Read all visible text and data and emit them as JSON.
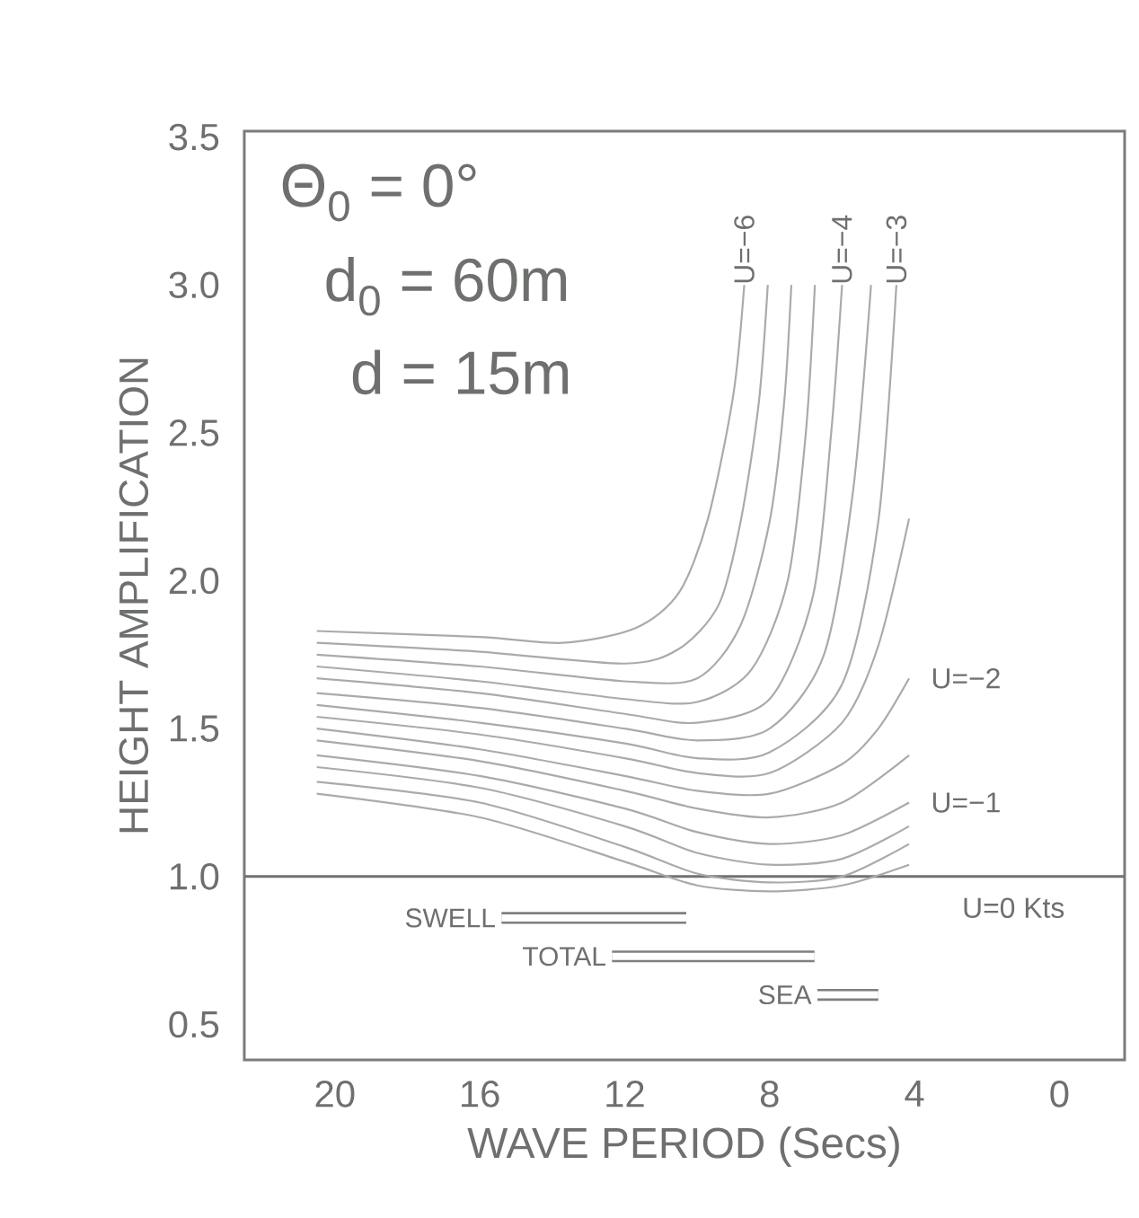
{
  "chart_data": {
    "type": "line",
    "xlabel": "WAVE PERIOD (Secs)",
    "ylabel": "HEIGHT AMPLIFICATION",
    "xlim": [
      22.5,
      -1.8
    ],
    "xticks": [
      20,
      16,
      12,
      8,
      4,
      0
    ],
    "ylim": [
      0.38,
      3.52
    ],
    "yticks": [
      0.5,
      {
        "value": 1.0,
        "label": "1.0"
      },
      1.5,
      {
        "value": 2.0,
        "label": "2.0"
      },
      2.5,
      {
        "value": 3.0,
        "label": "3.0"
      },
      3.5
    ],
    "ref_lines": [
      {
        "axis": "y",
        "value": 1.0,
        "color": "#6f726f"
      }
    ],
    "annotations": [
      "Θ$_{0}$ = 0°",
      "d$_{0}$ = 60m",
      "d = 15m",
      {
        "text": "U=−6",
        "x": 8.7,
        "y": 3.0
      },
      {
        "text": "U=−4",
        "x": 6.0,
        "y": 3.0
      },
      {
        "text": "U=−3",
        "x": 4.5,
        "y": 3.0
      },
      {
        "text": "U=−2",
        "x": 4.15,
        "y": 1.67
      },
      {
        "text": "U=−1",
        "x": 4.15,
        "y": 1.25
      },
      "U=0 Kts"
    ],
    "series": [
      {
        "color": "#a9aba9",
        "x": [
          20.5,
          16,
          13.7,
          11.7,
          10.5,
          9.7,
          9.0,
          8.7
        ],
        "values": [
          1.83,
          1.81,
          1.79,
          1.84,
          1.96,
          2.21,
          2.63,
          3.0
        ]
      },
      {
        "color": "#a9aba9",
        "x": [
          20.5,
          16,
          12,
          10.5,
          9.4,
          8.8,
          8.3,
          8.05
        ],
        "values": [
          1.79,
          1.76,
          1.72,
          1.77,
          1.92,
          2.2,
          2.6,
          3.0
        ]
      },
      {
        "color": "#a9aba9",
        "x": [
          20.5,
          16,
          12,
          10,
          8.8,
          8.0,
          7.6,
          7.4
        ],
        "values": [
          1.75,
          1.71,
          1.66,
          1.67,
          1.85,
          2.2,
          2.6,
          3.0
        ]
      },
      {
        "color": "#a9aba9",
        "x": [
          20.5,
          16,
          12,
          10,
          8.5,
          7.5,
          7.0,
          6.75
        ],
        "values": [
          1.71,
          1.66,
          1.6,
          1.59,
          1.7,
          2.0,
          2.5,
          3.0
        ]
      },
      {
        "color": "#a9aba9",
        "x": [
          20.5,
          16,
          12,
          10,
          8,
          6.8,
          6.3,
          6.0
        ],
        "values": [
          1.67,
          1.62,
          1.55,
          1.52,
          1.6,
          1.95,
          2.5,
          3.0
        ]
      },
      {
        "color": "#a9aba9",
        "x": [
          20.5,
          16,
          12,
          10,
          8,
          6.5,
          5.7,
          5.2
        ],
        "values": [
          1.62,
          1.57,
          1.5,
          1.46,
          1.5,
          1.75,
          2.3,
          3.0
        ]
      },
      {
        "color": "#a9aba9",
        "x": [
          20.5,
          16,
          12,
          10,
          8,
          6,
          5.0,
          4.5
        ],
        "values": [
          1.58,
          1.52,
          1.45,
          1.4,
          1.42,
          1.65,
          2.2,
          3.0
        ]
      },
      {
        "color": "#a9aba9",
        "x": [
          20.5,
          16,
          12,
          10,
          8,
          6,
          5,
          4.15
        ],
        "values": [
          1.54,
          1.48,
          1.4,
          1.35,
          1.35,
          1.52,
          1.78,
          2.21
        ]
      },
      {
        "color": "#a9aba9",
        "x": [
          20.5,
          16,
          12,
          10,
          8,
          6,
          5,
          4.15
        ],
        "values": [
          1.5,
          1.43,
          1.34,
          1.29,
          1.28,
          1.38,
          1.5,
          1.67
        ]
      },
      {
        "color": "#a9aba9",
        "x": [
          20.5,
          16,
          12,
          10,
          8,
          6,
          4.15
        ],
        "values": [
          1.46,
          1.39,
          1.29,
          1.23,
          1.2,
          1.25,
          1.41
        ]
      },
      {
        "color": "#a9aba9",
        "x": [
          20.5,
          16,
          12,
          10,
          8,
          6,
          4.15
        ],
        "values": [
          1.41,
          1.34,
          1.23,
          1.15,
          1.11,
          1.14,
          1.25
        ]
      },
      {
        "color": "#a9aba9",
        "x": [
          20.5,
          16,
          12,
          10,
          8,
          6,
          4.15
        ],
        "values": [
          1.37,
          1.3,
          1.17,
          1.08,
          1.04,
          1.06,
          1.17
        ]
      },
      {
        "color": "#a9aba9",
        "x": [
          20.5,
          16,
          12,
          10,
          8,
          6,
          4.15
        ],
        "values": [
          1.32,
          1.25,
          1.1,
          1.01,
          0.98,
          1.0,
          1.11
        ]
      },
      {
        "color": "#a9aba9",
        "x": [
          20.5,
          16,
          12,
          10,
          8,
          6,
          4.15
        ],
        "values": [
          1.28,
          1.2,
          1.05,
          0.97,
          0.95,
          0.97,
          1.04
        ]
      },
      {
        "type": "line",
        "name": "SWELL",
        "color": "#7d807d",
        "x": [
          15.4,
          10.3
        ],
        "values": [
          0.86,
          0.86
        ]
      },
      {
        "type": "line",
        "name": "TOTAL",
        "color": "#7d807d",
        "x": [
          12.35,
          6.76
        ],
        "values": [
          0.73,
          0.73
        ]
      },
      {
        "type": "line",
        "name": "SEA",
        "color": "#7d807d",
        "x": [
          6.68,
          5.0
        ],
        "values": [
          0.6,
          0.6
        ]
      }
    ]
  }
}
